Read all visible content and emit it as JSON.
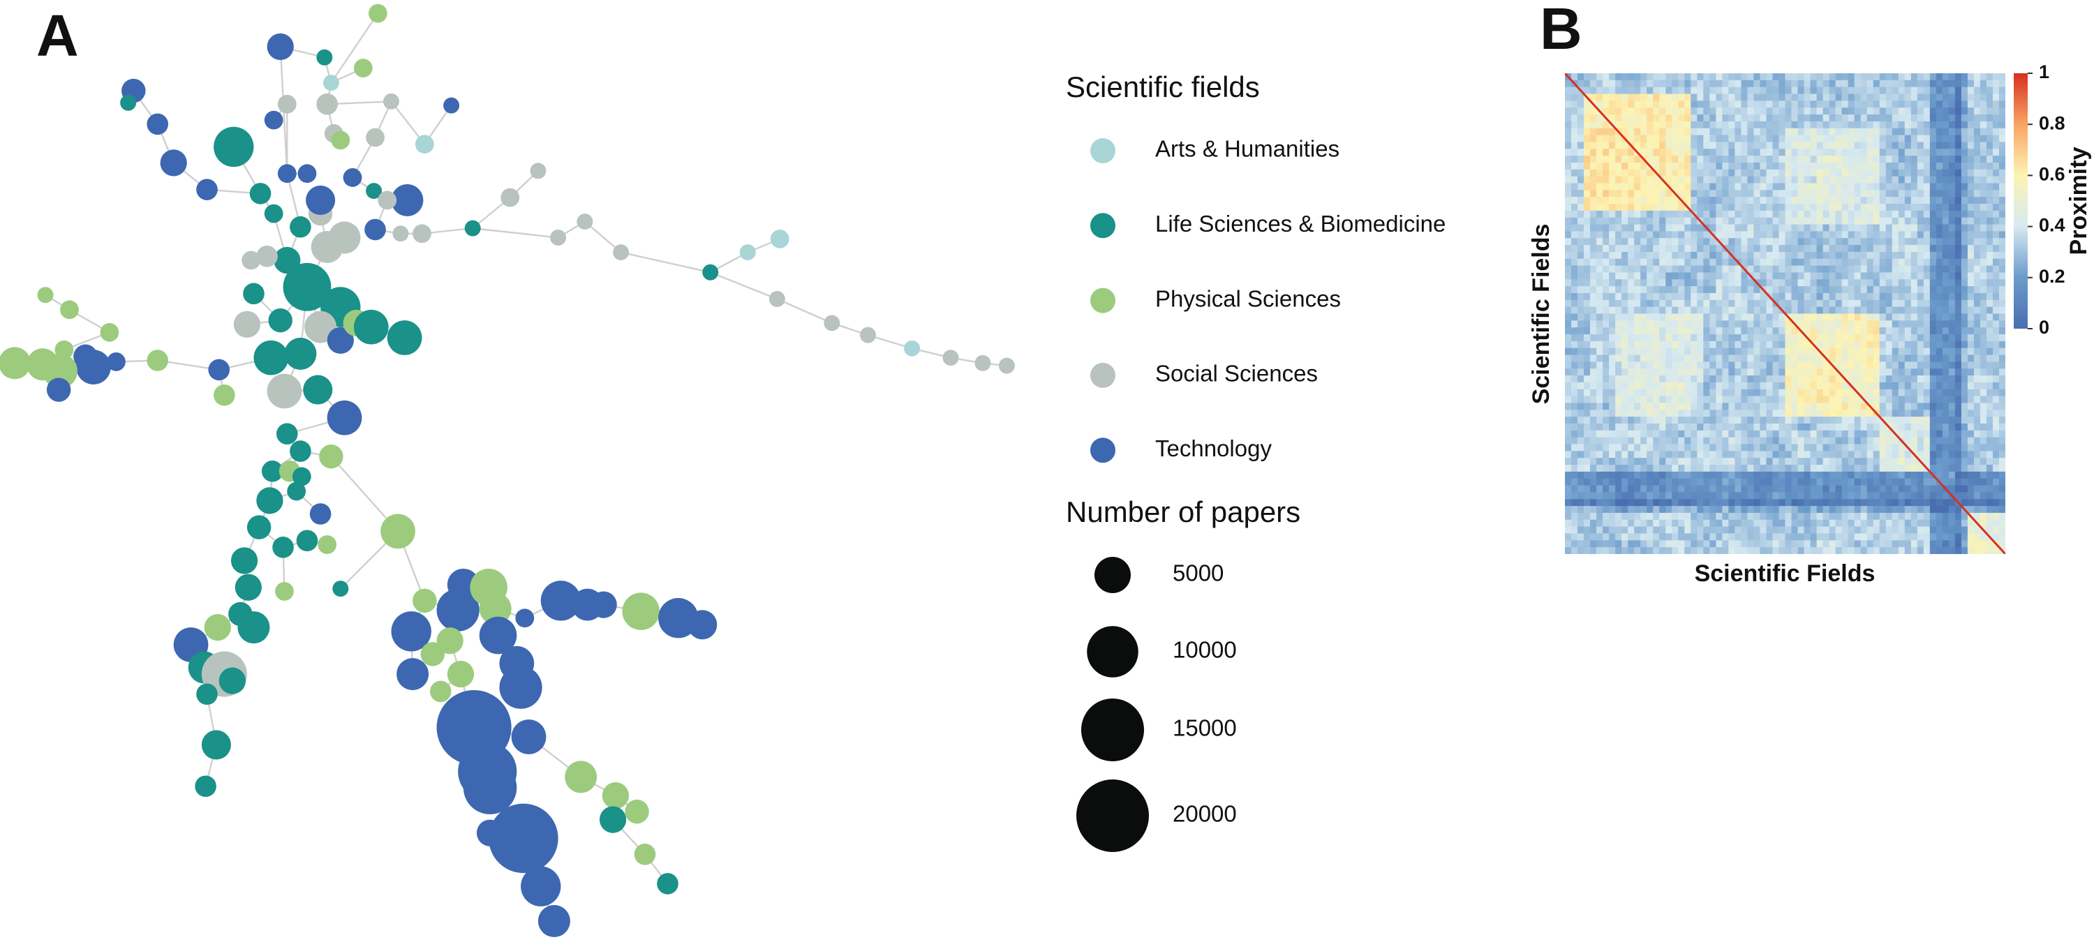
{
  "panel_a": {
    "label": "A",
    "legend_title": "Scientific fields",
    "fields": [
      {
        "name": "Arts & Humanities",
        "color": "#a9d5d7"
      },
      {
        "name": "Life Sciences & Biomedicine",
        "color": "#1a9189"
      },
      {
        "name": "Physical Sciences",
        "color": "#9ccb7e"
      },
      {
        "name": "Social Sciences",
        "color": "#b9c3be"
      },
      {
        "name": "Technology",
        "color": "#3d67b1"
      }
    ],
    "size_title": "Number of papers",
    "sizes": [
      5000,
      10000,
      15000,
      20000
    ]
  },
  "panel_b": {
    "label": "B",
    "x_label": "Scientific Fields",
    "y_label": "Scientific Fields",
    "colorbar_label": "Proximity",
    "colorbar_lim": [
      0,
      1
    ],
    "colorbar_ticks": [
      0,
      0.2,
      0.4,
      0.6,
      0.8,
      1
    ]
  }
}
